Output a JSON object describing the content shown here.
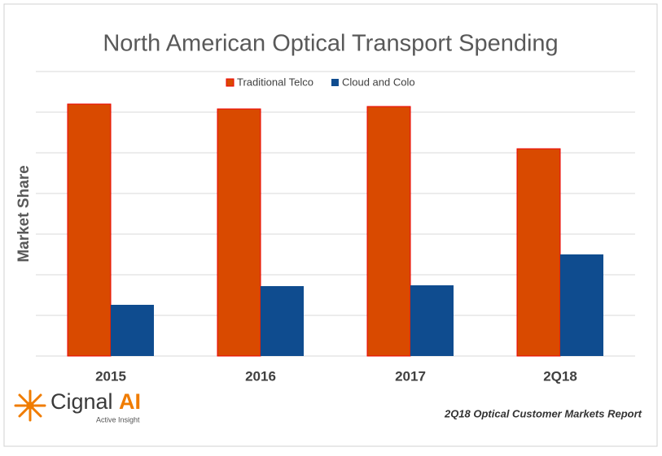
{
  "chart_data": {
    "type": "bar",
    "title": "North American Optical Transport Spending",
    "ylabel": "Market Share",
    "categories": [
      "2015",
      "2016",
      "2017",
      "2Q18"
    ],
    "series": [
      {
        "name": "Traditional Telco",
        "color": "#d94a00",
        "values": [
          62,
          60.8,
          61.4,
          51
        ]
      },
      {
        "name": "Cloud and Colo",
        "color": "#0f4c8f",
        "values": [
          12.6,
          17.2,
          17.4,
          25
        ]
      }
    ],
    "ylim": [
      0,
      70
    ],
    "yticks": [
      0,
      10,
      20,
      30,
      40,
      50,
      60,
      70
    ],
    "grid": true,
    "show_tick_labels": false,
    "legend": "top"
  },
  "footer": {
    "logo": "Cignal",
    "logo_accent": "AI",
    "tagline": "Active Insight",
    "source": "2Q18 Optical Customer Markets Report"
  }
}
